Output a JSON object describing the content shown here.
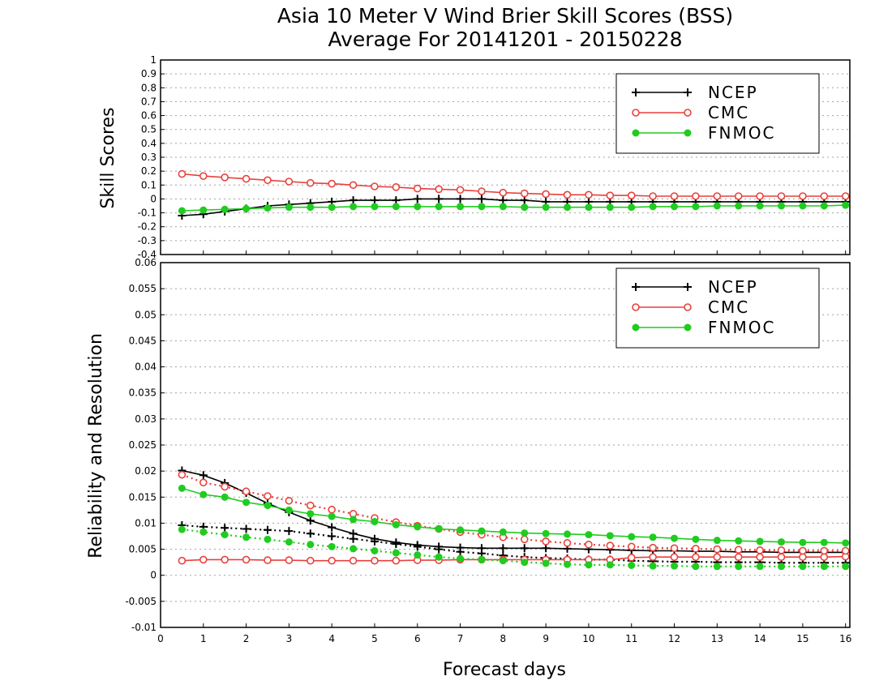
{
  "chart_data": {
    "type": "line",
    "title": "Asia 10 Meter V Wind Brier Skill Scores (BSS)",
    "subtitle": "Average For 20141201 - 20150228",
    "xlabel": "Forecast days",
    "x_ticks": [
      "0",
      "1",
      "2",
      "3",
      "4",
      "5",
      "6",
      "7",
      "8",
      "9",
      "10",
      "11",
      "12",
      "13",
      "14",
      "15",
      "16"
    ],
    "xlim": [
      0,
      16.1
    ],
    "x": [
      0.5,
      1,
      1.5,
      2,
      2.5,
      3,
      3.5,
      4,
      4.5,
      5,
      5.5,
      6,
      6.5,
      7,
      7.5,
      8,
      8.5,
      9,
      9.5,
      10,
      10.5,
      11,
      11.5,
      12,
      12.5,
      13,
      13.5,
      14,
      14.5,
      15,
      15.5,
      16
    ],
    "colors": {
      "NCEP": "#000000",
      "CMC": "#e8413c",
      "FNMOC": "#1fcc1f"
    },
    "panels": [
      {
        "ylabel": "Skill Scores",
        "ylim": [
          -0.4,
          1
        ],
        "y_ticks": [
          "-0.4",
          "-0.3",
          "-0.2",
          "-0.1",
          "0",
          "0.1",
          "0.2",
          "0.3",
          "0.4",
          "0.5",
          "0.6",
          "0.7",
          "0.8",
          "0.9",
          "1"
        ],
        "grid": true,
        "legend": {
          "position": "top-right",
          "entries": [
            "NCEP",
            "CMC",
            "FNMOC"
          ]
        },
        "series": [
          {
            "name": "NCEP",
            "style": "solid",
            "marker": "plus",
            "values": [
              -0.12,
              -0.11,
              -0.09,
              -0.07,
              -0.05,
              -0.04,
              -0.03,
              -0.02,
              -0.01,
              -0.01,
              -0.01,
              0,
              0,
              0,
              0,
              -0.01,
              -0.01,
              -0.02,
              -0.02,
              -0.02,
              -0.02,
              -0.02,
              -0.02,
              -0.02,
              -0.02,
              -0.02,
              -0.02,
              -0.02,
              -0.02,
              -0.02,
              -0.02,
              -0.02
            ]
          },
          {
            "name": "CMC",
            "style": "solid",
            "marker": "open-circle",
            "values": [
              0.18,
              0.165,
              0.155,
              0.145,
              0.135,
              0.125,
              0.115,
              0.11,
              0.1,
              0.09,
              0.085,
              0.075,
              0.07,
              0.065,
              0.055,
              0.045,
              0.04,
              0.035,
              0.03,
              0.03,
              0.025,
              0.025,
              0.02,
              0.02,
              0.02,
              0.02,
              0.02,
              0.02,
              0.02,
              0.02,
              0.02,
              0.02
            ]
          },
          {
            "name": "FNMOC",
            "style": "solid",
            "marker": "filled-circle",
            "values": [
              -0.085,
              -0.08,
              -0.075,
              -0.07,
              -0.065,
              -0.06,
              -0.06,
              -0.06,
              -0.055,
              -0.055,
              -0.055,
              -0.055,
              -0.055,
              -0.055,
              -0.055,
              -0.055,
              -0.06,
              -0.06,
              -0.06,
              -0.06,
              -0.06,
              -0.06,
              -0.055,
              -0.055,
              -0.055,
              -0.05,
              -0.05,
              -0.05,
              -0.05,
              -0.05,
              -0.05,
              -0.045
            ]
          }
        ]
      },
      {
        "ylabel": "Reliability and Resolution",
        "ylim": [
          -0.01,
          0.06
        ],
        "y_ticks": [
          "-0.01",
          "-0.005",
          "0",
          "0.005",
          "0.01",
          "0.015",
          "0.02",
          "0.025",
          "0.03",
          "0.035",
          "0.04",
          "0.045",
          "0.05",
          "0.055",
          "0.06"
        ],
        "grid": true,
        "legend": {
          "position": "top-right",
          "entries": [
            "NCEP",
            "CMC",
            "FNMOC"
          ]
        },
        "series": [
          {
            "name": "NCEP",
            "style": "solid",
            "marker": "plus",
            "values": [
              0.0201,
              0.0192,
              0.0177,
              0.0158,
              0.0138,
              0.0121,
              0.0105,
              0.0092,
              0.008,
              0.007,
              0.0063,
              0.0058,
              0.0055,
              0.0053,
              0.0052,
              0.0052,
              0.0052,
              0.0052,
              0.0051,
              0.005,
              0.0049,
              0.0048,
              0.0047,
              0.0047,
              0.0046,
              0.0046,
              0.0045,
              0.0045,
              0.0044,
              0.0044,
              0.0044,
              0.0044
            ]
          },
          {
            "name": "NCEP",
            "style": "dotted",
            "marker": "plus",
            "values": [
              0.0096,
              0.0093,
              0.0091,
              0.0089,
              0.0087,
              0.0085,
              0.008,
              0.0075,
              0.007,
              0.0065,
              0.006,
              0.0055,
              0.005,
              0.0045,
              0.0042,
              0.0038,
              0.0035,
              0.0033,
              0.0032,
              0.003,
              0.003,
              0.0028,
              0.0027,
              0.0026,
              0.0026,
              0.0025,
              0.0025,
              0.0025,
              0.0024,
              0.0024,
              0.0024,
              0.0024
            ]
          },
          {
            "name": "CMC",
            "style": "solid",
            "marker": "open-circle",
            "values": [
              0.0028,
              0.003,
              0.003,
              0.003,
              0.0029,
              0.0029,
              0.0028,
              0.0028,
              0.0028,
              0.0028,
              0.0028,
              0.0029,
              0.0029,
              0.003,
              0.003,
              0.003,
              0.003,
              0.003,
              0.003,
              0.003,
              0.003,
              0.0034,
              0.0035,
              0.0035,
              0.0035,
              0.0035,
              0.0035,
              0.0035,
              0.0035,
              0.0035,
              0.0035,
              0.0036
            ]
          },
          {
            "name": "CMC",
            "style": "dotted",
            "marker": "open-circle",
            "values": [
              0.0193,
              0.0178,
              0.017,
              0.0161,
              0.0152,
              0.0143,
              0.0134,
              0.0126,
              0.0118,
              0.011,
              0.0102,
              0.0095,
              0.0089,
              0.0083,
              0.0078,
              0.0073,
              0.0069,
              0.0065,
              0.0062,
              0.0059,
              0.0057,
              0.0055,
              0.0053,
              0.0052,
              0.0051,
              0.005,
              0.0049,
              0.0048,
              0.0048,
              0.0047,
              0.0047,
              0.0047
            ]
          },
          {
            "name": "FNMOC",
            "style": "solid",
            "marker": "filled-circle",
            "values": [
              0.0167,
              0.0155,
              0.015,
              0.014,
              0.0134,
              0.0125,
              0.0118,
              0.0113,
              0.0107,
              0.0103,
              0.0097,
              0.0093,
              0.0089,
              0.0087,
              0.0085,
              0.0083,
              0.0081,
              0.008,
              0.0079,
              0.0078,
              0.0076,
              0.0074,
              0.0073,
              0.0071,
              0.0069,
              0.0067,
              0.0066,
              0.0065,
              0.0064,
              0.0063,
              0.0063,
              0.0062
            ]
          },
          {
            "name": "FNMOC",
            "style": "dotted",
            "marker": "filled-circle",
            "values": [
              0.0088,
              0.0083,
              0.0078,
              0.0073,
              0.0069,
              0.0064,
              0.0059,
              0.0055,
              0.0051,
              0.0047,
              0.0043,
              0.0039,
              0.0035,
              0.0032,
              0.003,
              0.0028,
              0.0025,
              0.0023,
              0.0021,
              0.002,
              0.002,
              0.0019,
              0.0018,
              0.0018,
              0.0017,
              0.0017,
              0.0017,
              0.0017,
              0.0017,
              0.0017,
              0.0017,
              0.0017
            ]
          }
        ]
      }
    ]
  }
}
